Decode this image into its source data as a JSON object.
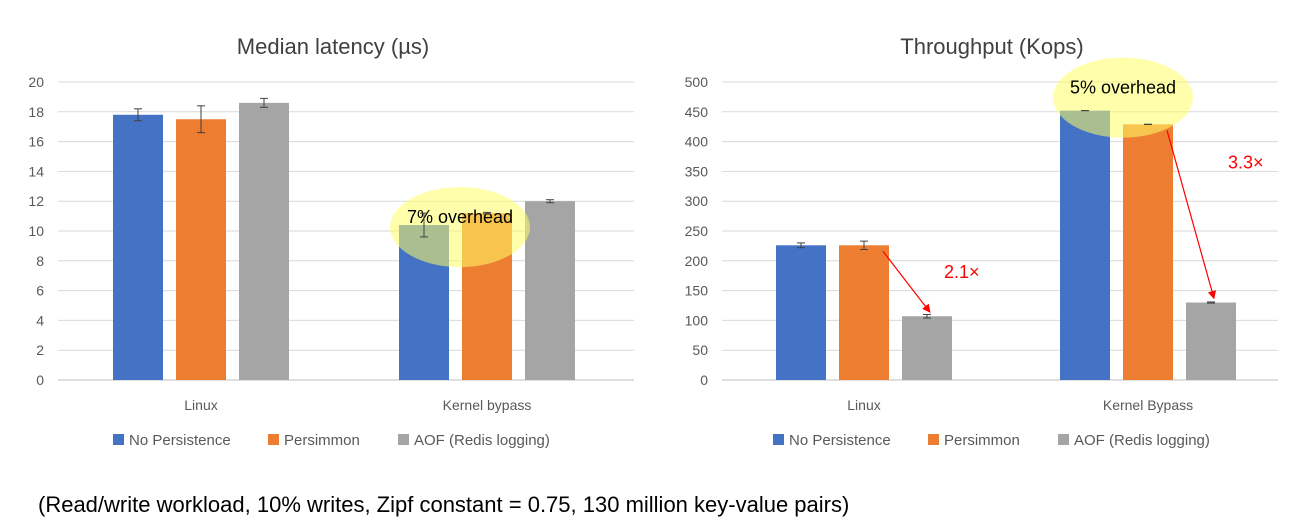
{
  "caption": "(Read/write workload, 10% writes, Zipf constant = 0.75, 130 million key-value pairs)",
  "chart_data": [
    {
      "type": "bar",
      "title": "Median latency (µs)",
      "categories": [
        "Linux",
        "Kernel bypass"
      ],
      "series": [
        {
          "name": "No Persistence",
          "color": "#4472C4",
          "values": [
            17.8,
            10.4
          ],
          "errors": [
            0.4,
            0.8
          ]
        },
        {
          "name": "Persimmon",
          "color": "#ED7D31",
          "values": [
            17.5,
            11.2
          ],
          "errors": [
            0.9,
            0.05
          ]
        },
        {
          "name": "AOF (Redis logging)",
          "color": "#A5A5A5",
          "values": [
            18.6,
            12.0
          ],
          "errors": [
            0.3,
            0.1
          ]
        }
      ],
      "ylim": [
        0,
        20
      ],
      "yticks": [
        0,
        2,
        4,
        6,
        8,
        10,
        12,
        14,
        16,
        18,
        20
      ],
      "xlabel": "",
      "ylabel": "",
      "grid": true,
      "legend": "bottom",
      "annotations": [
        {
          "kind": "highlight",
          "text": "7% overhead",
          "category": "Kernel bypass",
          "value": 11.2,
          "color": "#FFFF66"
        }
      ]
    },
    {
      "type": "bar",
      "title": "Throughput (Kops)",
      "categories": [
        "Linux",
        "Kernel Bypass"
      ],
      "series": [
        {
          "name": "No Persistence",
          "color": "#4472C4",
          "values": [
            226,
            452
          ],
          "errors": [
            4,
            0
          ]
        },
        {
          "name": "Persimmon",
          "color": "#ED7D31",
          "values": [
            226,
            429
          ],
          "errors": [
            7,
            0
          ]
        },
        {
          "name": "AOF (Redis logging)",
          "color": "#A5A5A5",
          "values": [
            107,
            130
          ],
          "errors": [
            3,
            1
          ]
        }
      ],
      "ylim": [
        0,
        500
      ],
      "yticks": [
        0,
        50,
        100,
        150,
        200,
        250,
        300,
        350,
        400,
        450,
        500
      ],
      "xlabel": "",
      "ylabel": "",
      "grid": true,
      "legend": "bottom",
      "annotations": [
        {
          "kind": "highlight",
          "text": "5% overhead",
          "category": "Kernel Bypass",
          "value": 452,
          "color": "#FFFF66"
        },
        {
          "kind": "arrow",
          "text": "2.1×",
          "category": "Linux",
          "from_series": 1,
          "to_series": 2,
          "color": "#FF0000"
        },
        {
          "kind": "arrow",
          "text": "3.3×",
          "category": "Kernel Bypass",
          "from_series": 1,
          "to_series": 2,
          "color": "#FF0000"
        }
      ]
    }
  ]
}
